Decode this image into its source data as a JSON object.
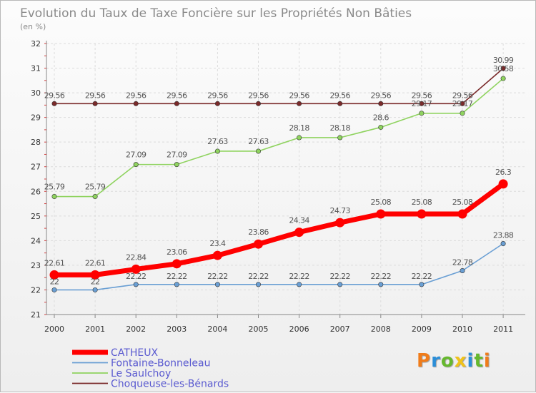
{
  "title": "Evolution du Taux de Taxe Foncière sur les Propriétés Non Bâties",
  "subtitle": "(en %)",
  "logo": {
    "letters": [
      "P",
      "r",
      "o",
      "x",
      "i",
      "t",
      "i"
    ],
    "colors": [
      "#f07c1a",
      "#2b8ed8",
      "#66b82e",
      "#f0c21a",
      "#2b8ed8",
      "#66b82e",
      "#f07c1a"
    ]
  },
  "chart_data": {
    "type": "line",
    "x": [
      "2000",
      "2001",
      "2002",
      "2003",
      "2004",
      "2005",
      "2006",
      "2007",
      "2008",
      "2009",
      "2010",
      "2011"
    ],
    "ylim": [
      21,
      32
    ],
    "yticks": [
      21,
      22,
      23,
      24,
      25,
      26,
      27,
      28,
      29,
      30,
      31,
      32
    ],
    "grid": true,
    "legend": "bottom-left",
    "series": [
      {
        "name": "Choqueuse-les-Bénards",
        "color": "#7a2a2a",
        "values": [
          29.56,
          29.56,
          29.56,
          29.56,
          29.56,
          29.56,
          29.56,
          29.56,
          29.56,
          29.56,
          29.56,
          30.99
        ],
        "labels": [
          "29.56",
          "29.56",
          "29.56",
          "29.56",
          "29.56",
          "29.56",
          "29.56",
          "29.56",
          "29.56",
          "29.56",
          "29.56",
          "30.99"
        ]
      },
      {
        "name": "Le Saulchoy",
        "color": "#8fd35f",
        "values": [
          25.79,
          25.79,
          27.09,
          27.09,
          27.63,
          27.63,
          28.18,
          28.18,
          28.6,
          29.17,
          29.17,
          30.58
        ],
        "labels": [
          "25.79",
          "25.79",
          "27.09",
          "27.09",
          "27.63",
          "27.63",
          "28.18",
          "28.18",
          "28.6",
          "29.17",
          "29.17",
          "30.58"
        ]
      },
      {
        "name": "Fontaine-Bonneleau",
        "color": "#6a9fd4",
        "values": [
          22,
          22,
          22.22,
          22.22,
          22.22,
          22.22,
          22.22,
          22.22,
          22.22,
          22.22,
          22.78,
          23.88
        ],
        "labels": [
          "22",
          "22",
          "22.22",
          "22.22",
          "22.22",
          "22.22",
          "22.22",
          "22.22",
          "22.22",
          "22.22",
          "22.78",
          "23.88"
        ]
      },
      {
        "name": "CATHEUX",
        "color": "#ff0000",
        "values": [
          22.61,
          22.61,
          22.84,
          23.06,
          23.4,
          23.86,
          24.34,
          24.73,
          25.08,
          25.08,
          25.08,
          26.3
        ],
        "labels": [
          "22.61",
          "22.61",
          "22.84",
          "23.06",
          "23.4",
          "23.86",
          "24.34",
          "24.73",
          "25.08",
          "25.08",
          "25.08",
          "26.3"
        ]
      }
    ],
    "legend_order": [
      "CATHEUX",
      "Fontaine-Bonneleau",
      "Le Saulchoy",
      "Choqueuse-les-Bénards"
    ]
  }
}
